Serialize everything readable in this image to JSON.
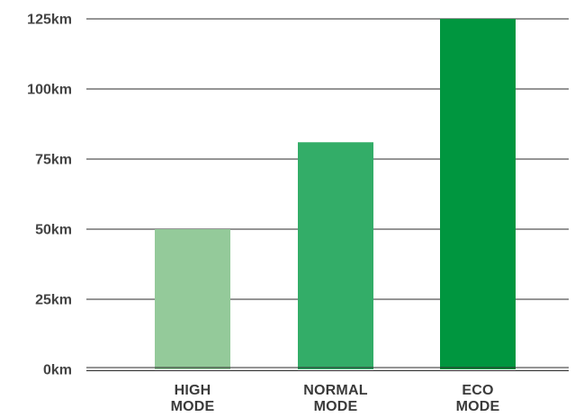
{
  "chart_data": {
    "type": "bar",
    "title": "",
    "xlabel": "",
    "ylabel": "",
    "categories": [
      [
        "HIGH",
        "MODE"
      ],
      [
        "NORMAL",
        "MODE"
      ],
      [
        "ECO",
        "MODE"
      ]
    ],
    "values": [
      50,
      81,
      125
    ],
    "bar_colors": [
      "#94ca9a",
      "#33ad68",
      "#00963f"
    ],
    "ylim": [
      0,
      125
    ],
    "yticks": [
      0,
      25,
      50,
      75,
      100,
      125
    ],
    "ytick_labels": [
      "0km",
      "25km",
      "50km",
      "75km",
      "100km",
      "125km"
    ],
    "grid": true,
    "legend": "none"
  }
}
